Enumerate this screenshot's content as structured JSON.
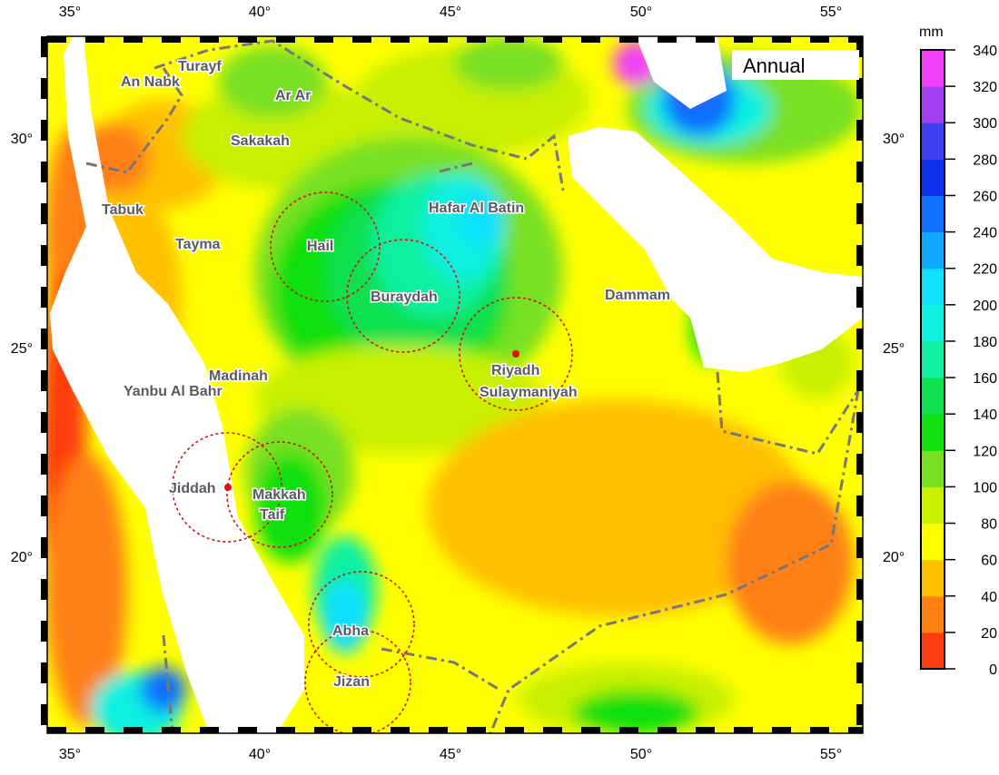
{
  "title_box": "Annual",
  "colorbar": {
    "unit": "mm",
    "levels": [
      0,
      20,
      40,
      60,
      80,
      100,
      120,
      140,
      160,
      180,
      200,
      220,
      240,
      260,
      280,
      300,
      320,
      340
    ],
    "colors": [
      "#ff3c10",
      "#ff8014",
      "#ffc000",
      "#ffff00",
      "#c8f000",
      "#78e020",
      "#10e010",
      "#10e050",
      "#10f0a0",
      "#10f0e0",
      "#10e0ff",
      "#10a8ff",
      "#1070ff",
      "#1030f0",
      "#4040f0",
      "#a040f0",
      "#f040f8"
    ]
  },
  "lon_ticks": [
    "35°",
    "40°",
    "45°",
    "50°",
    "55°"
  ],
  "lat_ticks": [
    "30°",
    "25°",
    "20°"
  ],
  "cities": [
    {
      "name": "Turayf"
    },
    {
      "name": "An Nabk"
    },
    {
      "name": "Ar Ar"
    },
    {
      "name": "Sakakah"
    },
    {
      "name": "Tabuk"
    },
    {
      "name": "Tayma"
    },
    {
      "name": "Hail"
    },
    {
      "name": "Hafar Al Batin"
    },
    {
      "name": "Buraydah"
    },
    {
      "name": "Dammam"
    },
    {
      "name": "Riyadh"
    },
    {
      "name": "Sulaymaniyah"
    },
    {
      "name": "Madinah"
    },
    {
      "name": "Yanbu Al Bahr"
    },
    {
      "name": "Jiddah"
    },
    {
      "name": "Makkah"
    },
    {
      "name": "Taif"
    },
    {
      "name": "Abha"
    },
    {
      "name": "Jizan"
    }
  ]
}
